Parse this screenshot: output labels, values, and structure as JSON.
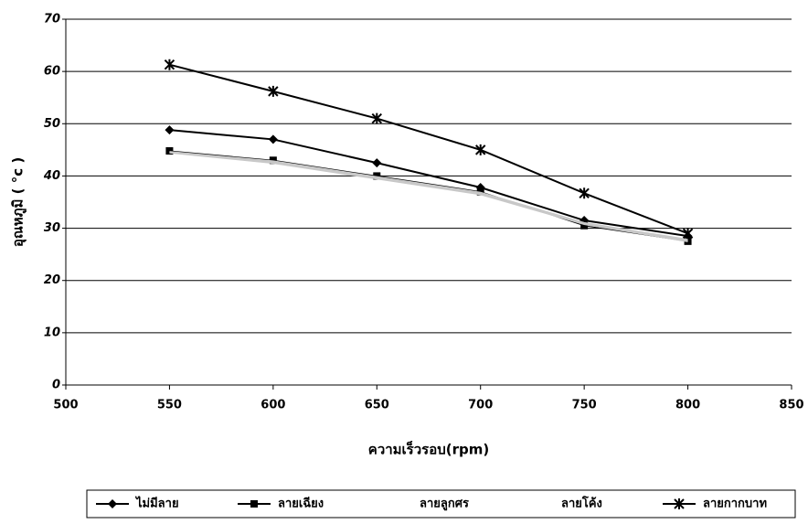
{
  "chart_data": {
    "type": "line",
    "xlabel": "ความเร็วรอบ(rpm)",
    "ylabel": "อุณหภูมิ ( °c )",
    "x": [
      550,
      600,
      650,
      700,
      750,
      800
    ],
    "series": [
      {
        "name": "ไม่มีลาย",
        "color": "#000000",
        "marker": "diamond",
        "values": [
          48.8,
          47,
          42.5,
          37.8,
          31.5,
          28.5
        ]
      },
      {
        "name": "ลายเฉียง",
        "color": "#000000",
        "marker": "square",
        "values": [
          44.8,
          43,
          40,
          37,
          30.5,
          27.5
        ]
      },
      {
        "name": "ลายลูกศร",
        "color": "#c8c8c8",
        "marker": "none",
        "values": [
          44.5,
          42.5,
          39.5,
          36.5,
          30.8,
          27.5
        ]
      },
      {
        "name": "ลายโค้ง",
        "color": "#c8c8c8",
        "marker": "none",
        "values": [
          44.6,
          42.8,
          39.8,
          36.8,
          31,
          27.8
        ]
      },
      {
        "name": "ลายกากบาท",
        "color": "#000000",
        "marker": "star",
        "values": [
          61.3,
          56.2,
          51,
          45,
          36.7,
          29
        ]
      }
    ],
    "xlim": [
      500,
      850
    ],
    "xticks": [
      500,
      550,
      600,
      650,
      700,
      750,
      800,
      850
    ],
    "ylim": [
      0,
      70
    ],
    "yticks": [
      0,
      10,
      20,
      30,
      40,
      50,
      60,
      70
    ],
    "grid": true,
    "legend": "bottom"
  }
}
